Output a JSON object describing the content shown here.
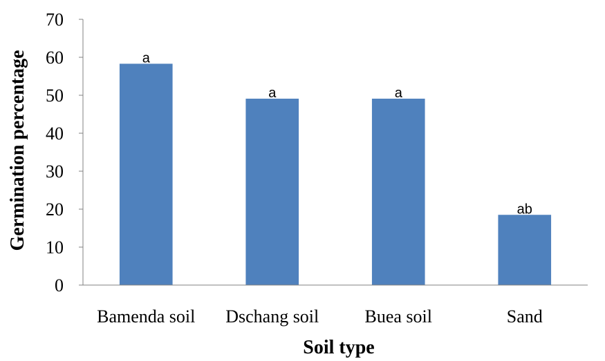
{
  "chart_data": {
    "type": "bar",
    "title": "",
    "xlabel": "Soil type",
    "ylabel": "Germination percentage",
    "categories": [
      "Bamenda soil",
      "Dschang soil",
      "Buea soil",
      "Sand"
    ],
    "values": [
      58.3,
      49.1,
      49.1,
      18.5
    ],
    "data_labels": [
      "a",
      "a",
      "a",
      "ab"
    ],
    "ylim": [
      0,
      70
    ],
    "yticks": [
      "0",
      "10",
      "20",
      "30",
      "40",
      "50",
      "60",
      "70"
    ],
    "grid": false,
    "legend": "none",
    "bar_color": "#4f81bd"
  }
}
